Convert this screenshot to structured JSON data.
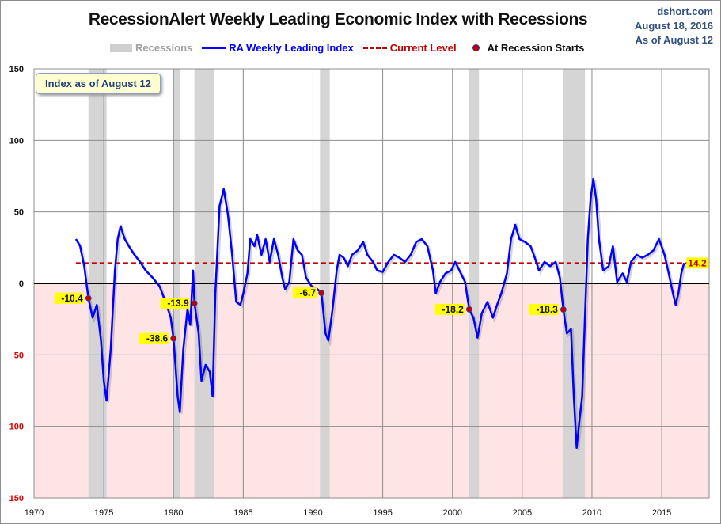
{
  "header": {
    "title": "RecessionAlert Weekly Leading Economic Index with Recessions",
    "source": "dshort.com",
    "date": "August 18, 2016",
    "as_of": "As of August 12"
  },
  "legend": {
    "recessions": "Recessions",
    "index": "RA Weekly Leading Index",
    "current": "Current Level",
    "starts": "At Recession Starts"
  },
  "annotation": "Index as of August 12",
  "colors": {
    "line": "#0000ff",
    "current": "#c00000",
    "recession": "#d0d0d0",
    "negative_bg": "#ffe4e6",
    "dot": "#c00000",
    "label_bg": "#ffff00"
  },
  "chart_data": {
    "type": "line",
    "title": "RecessionAlert Weekly Leading Economic Index with Recessions",
    "xlim": [
      1970,
      2018.4
    ],
    "ylim": [
      -150,
      150
    ],
    "x_ticks": [
      1970,
      1975,
      1980,
      1985,
      1990,
      1995,
      2000,
      2005,
      2010,
      2015
    ],
    "x_tick_labels": [
      "1970",
      "1975",
      "1980",
      "1985",
      "1990",
      "1995",
      "2000",
      "2005",
      "2010",
      "2015"
    ],
    "y_ticks": [
      150,
      100,
      50,
      0,
      -50,
      -100,
      -150
    ],
    "y_tick_labels": [
      "150",
      "100",
      "50",
      "0",
      "50",
      "100",
      "150"
    ],
    "grid": true,
    "legend_position": "top",
    "current_level": 14.2,
    "current_label": "14.2",
    "recessions": [
      [
        1973.9,
        1975.2
      ],
      [
        1980.0,
        1980.5
      ],
      [
        1981.5,
        1982.9
      ],
      [
        1990.5,
        1991.2
      ],
      [
        2001.2,
        2001.9
      ],
      [
        2007.9,
        2009.5
      ]
    ],
    "recession_starts": [
      {
        "x": 1973.9,
        "y": -10.4,
        "label": "-10.4"
      },
      {
        "x": 1980.0,
        "y": -38.6,
        "label": "-38.6"
      },
      {
        "x": 1981.5,
        "y": -13.9,
        "label": "-13.9"
      },
      {
        "x": 1990.6,
        "y": -6.7,
        "label": "-6.7"
      },
      {
        "x": 2001.2,
        "y": -18.2,
        "label": "-18.2"
      },
      {
        "x": 2007.95,
        "y": -18.3,
        "label": "-18.3"
      }
    ],
    "series": [
      {
        "name": "RA Weekly Leading Index",
        "x": [
          1973.0,
          1973.3,
          1973.6,
          1973.9,
          1974.2,
          1974.5,
          1974.8,
          1975.0,
          1975.2,
          1975.5,
          1975.8,
          1976.0,
          1976.2,
          1976.5,
          1976.8,
          1977.2,
          1977.6,
          1978.0,
          1978.5,
          1979.0,
          1979.5,
          1979.8,
          1980.0,
          1980.3,
          1980.45,
          1980.7,
          1981.0,
          1981.2,
          1981.4,
          1981.5,
          1981.8,
          1982.0,
          1982.3,
          1982.6,
          1982.8,
          1983.0,
          1983.3,
          1983.6,
          1983.9,
          1984.2,
          1984.5,
          1984.8,
          1985.0,
          1985.3,
          1985.5,
          1985.8,
          1986.0,
          1986.3,
          1986.6,
          1986.9,
          1987.2,
          1987.5,
          1987.8,
          1988.0,
          1988.3,
          1988.6,
          1988.9,
          1989.2,
          1989.5,
          1989.9,
          1990.3,
          1990.6,
          1990.9,
          1991.1,
          1991.4,
          1991.7,
          1991.9,
          1992.2,
          1992.5,
          1992.8,
          1993.2,
          1993.6,
          1993.9,
          1994.3,
          1994.6,
          1995.0,
          1995.4,
          1995.8,
          1996.2,
          1996.6,
          1997.0,
          1997.4,
          1997.8,
          1998.2,
          1998.6,
          1998.8,
          1999.1,
          1999.5,
          1999.9,
          2000.2,
          2000.6,
          2000.9,
          2001.2,
          2001.5,
          2001.8,
          2002.1,
          2002.5,
          2002.9,
          2003.2,
          2003.5,
          2003.9,
          2004.2,
          2004.5,
          2004.8,
          2005.2,
          2005.6,
          2005.9,
          2006.2,
          2006.6,
          2007.0,
          2007.4,
          2007.7,
          2007.95,
          2008.2,
          2008.5,
          2008.7,
          2008.9,
          2009.1,
          2009.3,
          2009.5,
          2009.7,
          2009.9,
          2010.1,
          2010.3,
          2010.5,
          2010.8,
          2011.2,
          2011.5,
          2011.8,
          2012.2,
          2012.5,
          2012.8,
          2013.2,
          2013.6,
          2014.0,
          2014.4,
          2014.8,
          2015.2,
          2015.5,
          2015.8,
          2016.0,
          2016.2,
          2016.4,
          2016.6
        ],
        "y": [
          31,
          26,
          12,
          -10.4,
          -24,
          -15,
          -40,
          -68,
          -82,
          -46,
          9,
          31,
          40,
          31,
          26,
          20,
          15,
          9,
          4,
          -2,
          -15,
          -24,
          -38.6,
          -79,
          -90,
          -46,
          -18,
          -29,
          9,
          -13.9,
          -35,
          -68,
          -57,
          -62,
          -79,
          -7,
          54,
          66,
          48,
          20,
          -13,
          -15,
          -7,
          7,
          31,
          26,
          34,
          20,
          31,
          15,
          31,
          20,
          4,
          -4,
          1,
          31,
          23,
          20,
          4,
          -2,
          -4,
          -6.7,
          -35,
          -40,
          -18,
          9,
          20,
          18,
          12,
          20,
          23,
          29,
          20,
          15,
          9,
          8,
          15,
          20,
          18,
          15,
          20,
          29,
          31,
          26,
          9,
          -7,
          1,
          7,
          9,
          15,
          7,
          1,
          -18.2,
          -24,
          -38,
          -21,
          -13,
          -24,
          -15,
          -7,
          7,
          31,
          41,
          31,
          29,
          26,
          18,
          9,
          15,
          12,
          15,
          4,
          -18.3,
          -35,
          -32,
          -79,
          -115,
          -96,
          -79,
          -24,
          31,
          59,
          73,
          59,
          31,
          9,
          12,
          26,
          1,
          7,
          1,
          15,
          20,
          18,
          20,
          23,
          31,
          20,
          7,
          -7,
          -15,
          -7,
          7,
          14.2
        ]
      }
    ]
  }
}
